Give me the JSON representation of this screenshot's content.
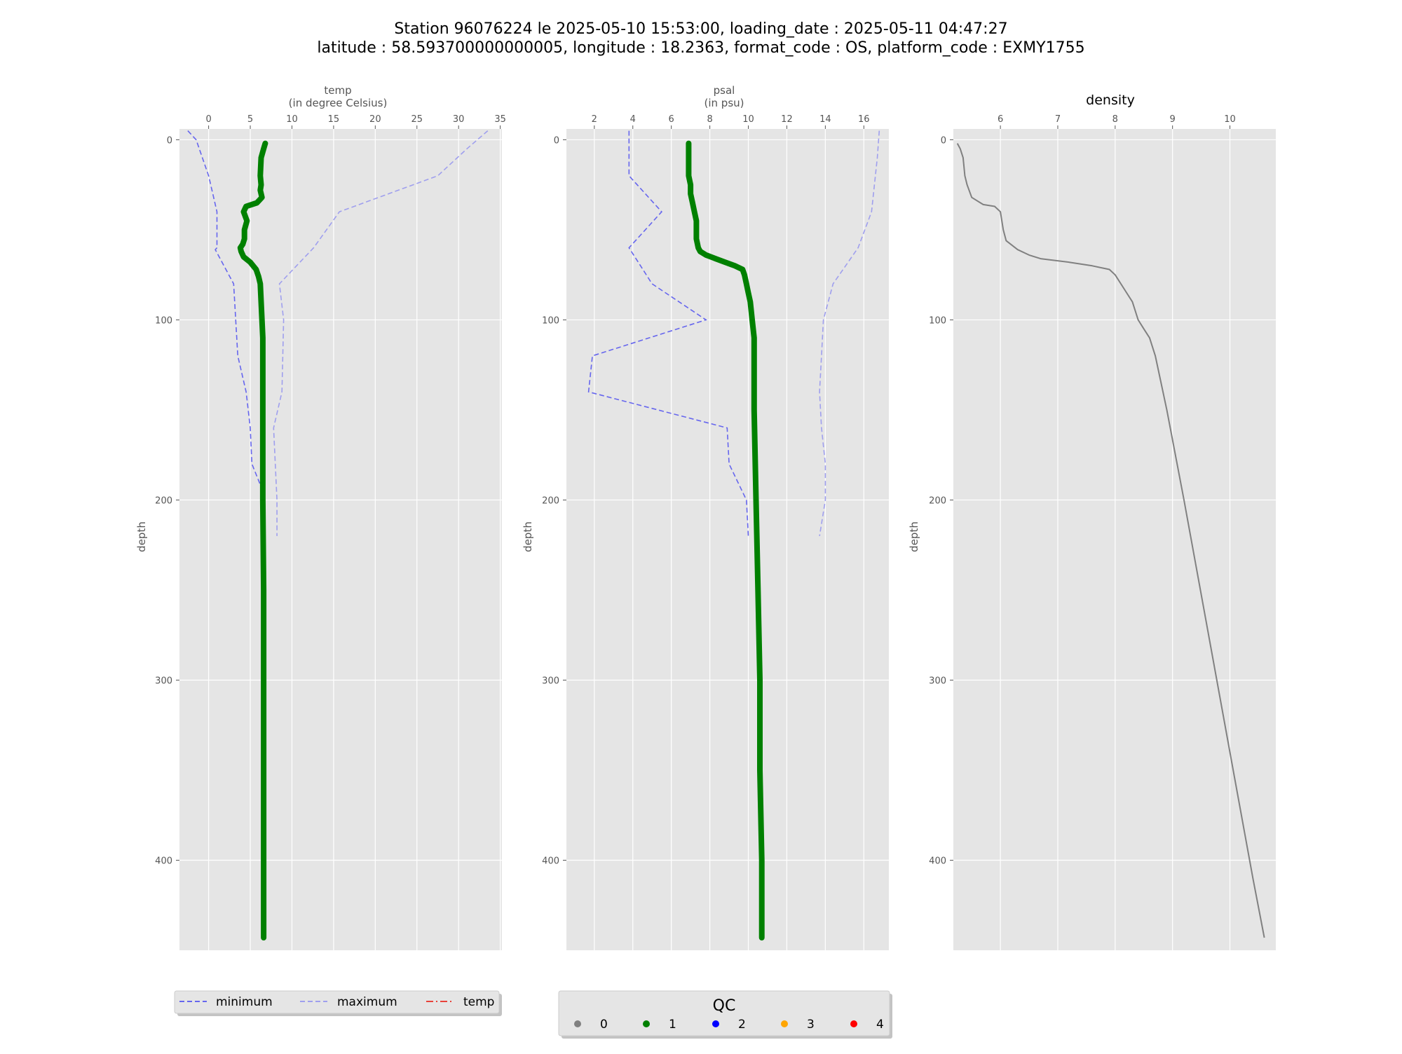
{
  "title": {
    "line1": "Station 96076224 le 2025-05-10 15:53:00, loading_date : 2025-05-11 04:47:27",
    "line2": "latitude : 58.593700000000005, longitude : 18.2363, format_code : OS, platform_code : EXMY1755"
  },
  "colors": {
    "background": "#e5e5e5",
    "grid": "#ffffff",
    "qc1": "#008000",
    "minimum": "#6666ee",
    "maximum": "#9f9fee",
    "density": "#808080"
  },
  "chart_data": [
    {
      "type": "line",
      "xlabel": "temp",
      "xunit": "(in degree Celsius)",
      "ylabel": "depth",
      "xlim": [
        -3.5,
        35.2
      ],
      "ylim": [
        450,
        -6
      ],
      "xticks": [
        0,
        5,
        10,
        15,
        20,
        25,
        30,
        35
      ],
      "yticks": [
        0,
        100,
        200,
        300,
        400
      ],
      "grid": true,
      "series": [
        {
          "name": "minimum",
          "style": "dashed",
          "x": [
            -2.5,
            -1.5,
            0,
            1,
            1,
            0.8,
            3,
            3.5,
            4.5,
            5,
            5.2,
            6.5
          ],
          "y": [
            -5,
            0,
            20,
            40,
            60,
            61,
            80,
            120,
            140,
            160,
            180,
            195
          ]
        },
        {
          "name": "maximum",
          "style": "dashed",
          "x": [
            33.5,
            31,
            27.5,
            15.7,
            12.6,
            8.5,
            9,
            8.8,
            7.8,
            8.2,
            8.2
          ],
          "y": [
            -5,
            5,
            20,
            40,
            60,
            80,
            100,
            140,
            160,
            200,
            220
          ]
        },
        {
          "name": "QC 1",
          "style": "thick",
          "x": [
            6.8,
            6.6,
            6.3,
            6.2,
            6.3,
            6.2,
            6.4,
            5.8,
            4.5,
            4.2,
            4.6,
            4.3,
            4.3,
            4.1,
            3.8,
            3.9,
            4.2,
            5,
            5.7,
            6,
            6.2,
            6.3,
            6.4,
            6.5,
            6.5,
            6.5,
            6.5,
            6.6,
            6.6,
            6.6,
            6.6,
            6.6
          ],
          "y": [
            2,
            5,
            10,
            20,
            25,
            28,
            32,
            35,
            37,
            40,
            45,
            50,
            55,
            58,
            60,
            62,
            65,
            68,
            72,
            76,
            80,
            90,
            100,
            110,
            120,
            150,
            200,
            250,
            300,
            350,
            400,
            443
          ]
        }
      ]
    },
    {
      "type": "line",
      "xlabel": "psal",
      "xunit": "(in psu)",
      "ylabel": "depth",
      "xlim": [
        0.55,
        17.3
      ],
      "ylim": [
        450,
        -6
      ],
      "xticks": [
        2,
        4,
        6,
        8,
        10,
        12,
        14,
        16
      ],
      "yticks": [
        0,
        100,
        200,
        300,
        400
      ],
      "grid": true,
      "series": [
        {
          "name": "minimum",
          "style": "dashed",
          "x": [
            3.8,
            3.8,
            5.5,
            3.8,
            5,
            7.8,
            1.9,
            1.7,
            8.9,
            9,
            9.9,
            10
          ],
          "y": [
            -5,
            20,
            40,
            60,
            80,
            100,
            120,
            140,
            160,
            180,
            200,
            220
          ]
        },
        {
          "name": "maximum",
          "style": "dashed",
          "x": [
            16.8,
            16.7,
            16.4,
            15.7,
            14.4,
            13.9,
            13.8,
            13.7,
            13.8,
            14,
            14,
            13.7
          ],
          "y": [
            -5,
            10,
            40,
            60,
            80,
            100,
            120,
            140,
            160,
            180,
            200,
            220
          ]
        },
        {
          "name": "QC 1",
          "style": "thick",
          "x": [
            6.9,
            6.9,
            6.9,
            7.0,
            7.0,
            7.1,
            7.2,
            7.3,
            7.3,
            7.4,
            7.5,
            7.8,
            8.3,
            8.8,
            9.3,
            9.7,
            9.8,
            9.9,
            10.0,
            10.1,
            10.2,
            10.3,
            10.3,
            10.3,
            10.4,
            10.5,
            10.6,
            10.6,
            10.7,
            10.7
          ],
          "y": [
            2,
            10,
            20,
            25,
            30,
            35,
            40,
            45,
            55,
            60,
            62,
            64,
            66,
            68,
            70,
            72,
            75,
            80,
            85,
            90,
            100,
            110,
            120,
            150,
            200,
            250,
            300,
            350,
            400,
            443
          ]
        }
      ]
    },
    {
      "type": "line",
      "title": "density",
      "ylabel": "depth",
      "xlim": [
        5.18,
        10.8
      ],
      "ylim": [
        450,
        -6
      ],
      "xticks": [
        6,
        7,
        8,
        9,
        10
      ],
      "yticks": [
        0,
        100,
        200,
        300,
        400
      ],
      "grid": true,
      "series": [
        {
          "name": "density",
          "style": "thin",
          "x": [
            5.25,
            5.3,
            5.35,
            5.38,
            5.42,
            5.5,
            5.7,
            5.9,
            6.0,
            6.05,
            6.1,
            6.3,
            6.5,
            6.7,
            7.2,
            7.6,
            7.9,
            8.0,
            8.1,
            8.2,
            8.3,
            8.4,
            8.5,
            8.6,
            8.7,
            8.9,
            9.2,
            9.6,
            10.0,
            10.4,
            10.6
          ],
          "y": [
            2,
            5,
            10,
            20,
            25,
            32,
            36,
            37,
            40,
            50,
            56,
            61,
            64,
            66,
            68,
            70,
            72,
            75,
            80,
            85,
            90,
            100,
            105,
            110,
            120,
            150,
            200,
            270,
            340,
            410,
            443
          ]
        }
      ]
    }
  ],
  "legend": {
    "items": [
      {
        "label": "minimum",
        "style": "dashed",
        "color": "#6666ee"
      },
      {
        "label": "maximum",
        "style": "dashed",
        "color": "#9f9fee"
      },
      {
        "label": "temp",
        "style": "dashdot",
        "color": "#e8423a"
      }
    ]
  },
  "qc_legend": {
    "title": "QC",
    "items": [
      {
        "label": "0",
        "color": "#808080"
      },
      {
        "label": "1",
        "color": "#008000"
      },
      {
        "label": "2",
        "color": "#0000ff"
      },
      {
        "label": "3",
        "color": "#ffa500"
      },
      {
        "label": "4",
        "color": "#ff0000"
      }
    ]
  }
}
